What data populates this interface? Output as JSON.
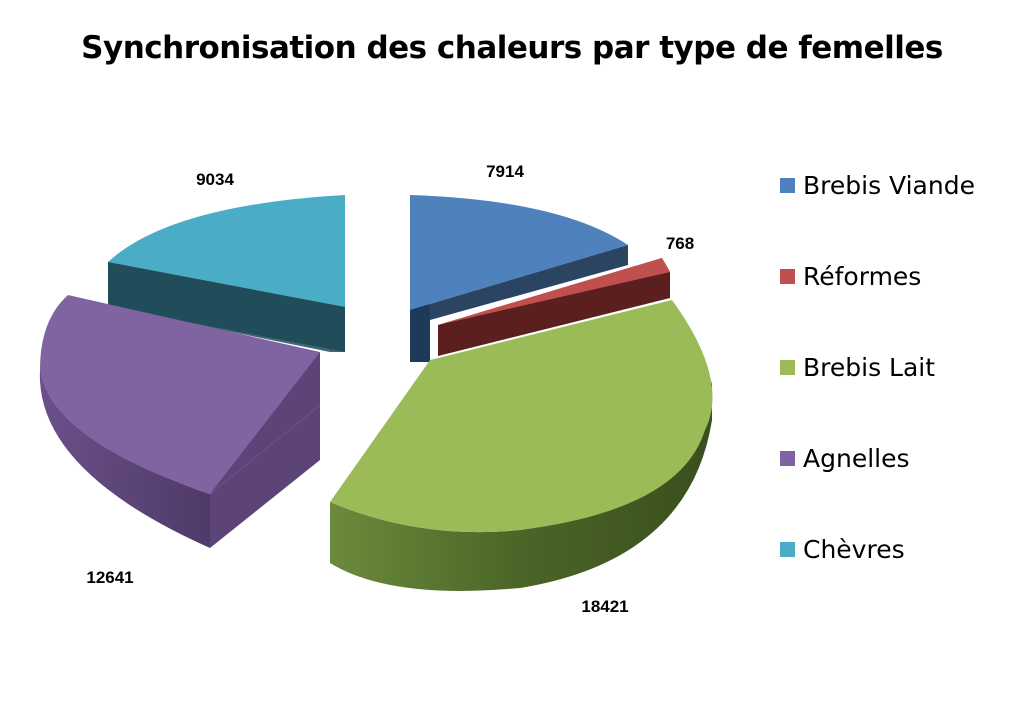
{
  "chart_data": {
    "type": "pie",
    "title": "Synchronisation des chaleurs par type de femelles",
    "series": [
      {
        "name": "Brebis Viande",
        "value": 7914,
        "color": "#4f81bd",
        "label": "7914"
      },
      {
        "name": "Réformes",
        "value": 768,
        "color": "#c0504d",
        "label": "768"
      },
      {
        "name": "Brebis Lait",
        "value": 18421,
        "color": "#9bbb59",
        "label": "18421"
      },
      {
        "name": "Agnelles",
        "value": 12641,
        "color": "#8064a2",
        "label": "12641"
      },
      {
        "name": "Chèvres",
        "value": 9034,
        "color": "#4bacc6",
        "label": "9034"
      }
    ],
    "legend_position": "right",
    "style": "3d-exploded"
  }
}
